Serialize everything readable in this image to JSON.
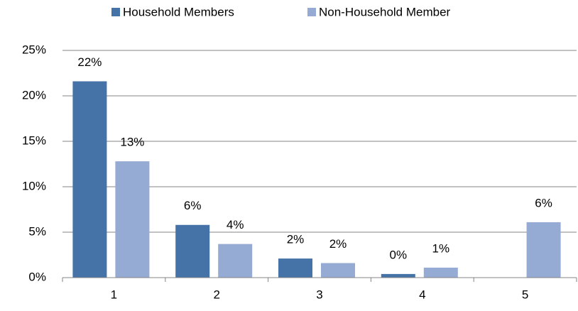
{
  "chart_data": {
    "type": "bar",
    "categories": [
      "1",
      "2",
      "3",
      "4",
      "5"
    ],
    "series": [
      {
        "name": "Household Members",
        "color": "#4572a7",
        "values": [
          21.6,
          5.8,
          2.1,
          0.4,
          null
        ],
        "value_labels": [
          "22%",
          "6%",
          "2%",
          "0%",
          null
        ]
      },
      {
        "name": "Non-Household Member",
        "color": "#95abd3",
        "values": [
          12.8,
          3.7,
          1.6,
          1.1,
          6.1
        ],
        "value_labels": [
          "13%",
          "4%",
          "2%",
          "1%",
          "6%"
        ]
      }
    ],
    "ylim": [
      0,
      25
    ],
    "yticks": [
      {
        "value": 0,
        "label": "0%"
      },
      {
        "value": 5,
        "label": "5%"
      },
      {
        "value": 10,
        "label": "10%"
      },
      {
        "value": 15,
        "label": "15%"
      },
      {
        "value": 20,
        "label": "20%"
      },
      {
        "value": 25,
        "label": "25%"
      }
    ],
    "grid": true,
    "legend": "top"
  }
}
